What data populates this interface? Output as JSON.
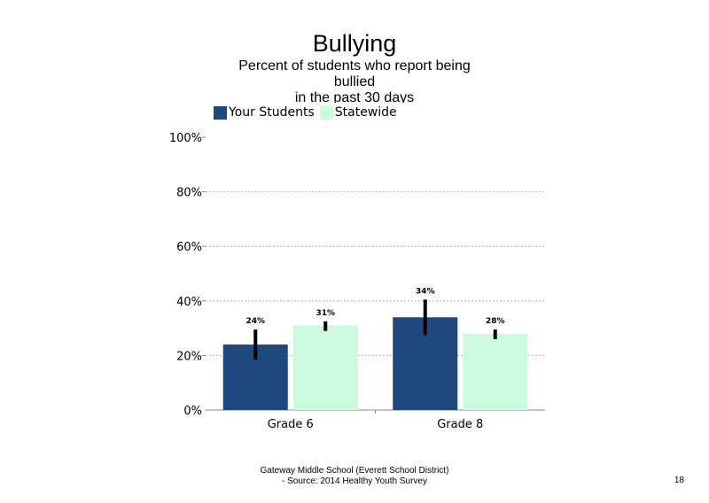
{
  "chart_data": {
    "type": "bar",
    "title": "Bullying",
    "subtitle_lines": [
      "Percent of students  who report being",
      "bullied",
      "in the past 30 days"
    ],
    "categories": [
      "Grade 6",
      "Grade 8"
    ],
    "series": [
      {
        "name": "Your Students",
        "color": "#1f497d",
        "values": [
          24,
          34
        ],
        "labels": [
          "24%",
          "34%"
        ],
        "error_low": [
          18.5,
          27.5
        ],
        "error_high": [
          29.5,
          40.5
        ]
      },
      {
        "name": "Statewide",
        "color": "#ccfadc",
        "values": [
          31,
          28
        ],
        "labels": [
          "31%",
          "28%"
        ],
        "error_low": [
          29,
          26
        ],
        "error_high": [
          32.5,
          29.5
        ]
      }
    ],
    "yticks": [
      "0%",
      "20%",
      "40%",
      "60%",
      "80%",
      "100%"
    ],
    "ylim": [
      0,
      100
    ],
    "grid": true,
    "legend_position": "top-left"
  },
  "footer": {
    "line1": "Gateway Middle  School  (Everett School District)",
    "line2": "- Source: 2014 Healthy  Youth Survey"
  },
  "page_number": "18"
}
